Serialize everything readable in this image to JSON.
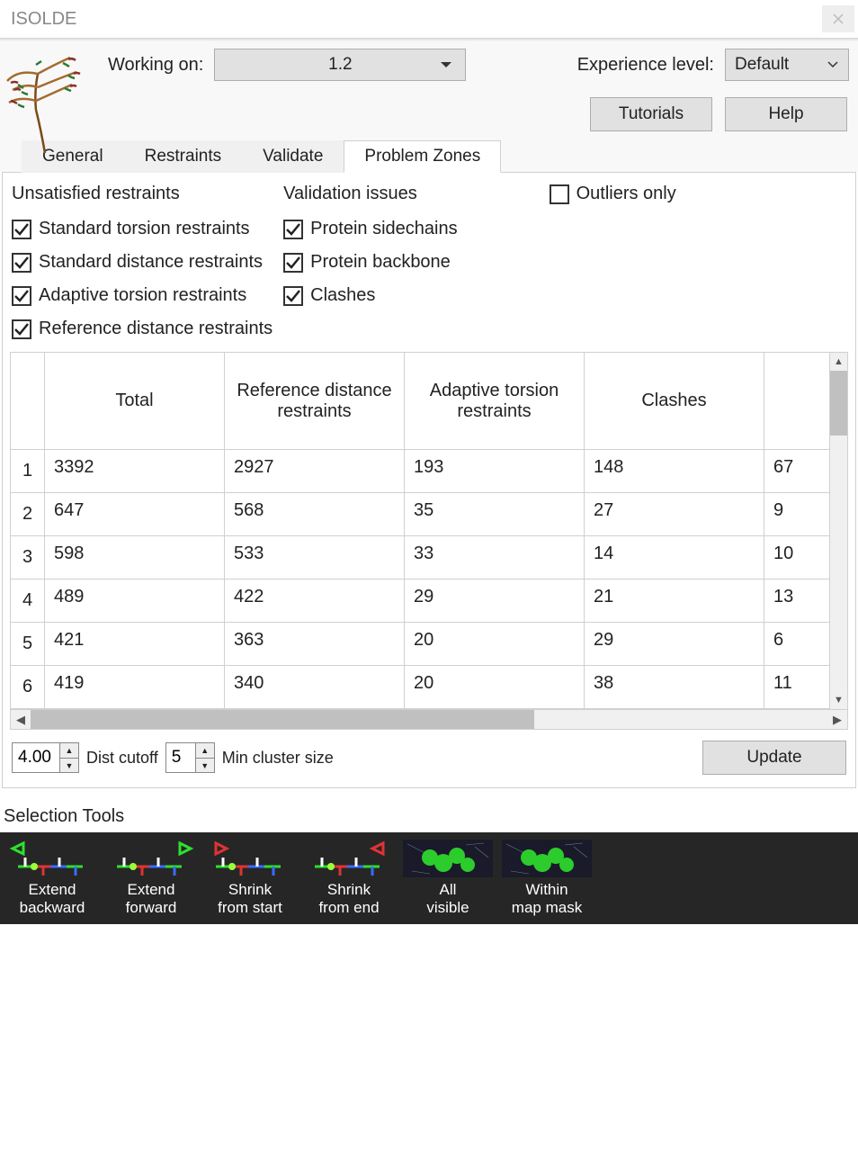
{
  "window": {
    "title": "ISOLDE"
  },
  "header": {
    "working_on_label": "Working on:",
    "working_on_value": "1.2",
    "experience_label": "Experience level:",
    "experience_value": "Default",
    "tutorials_btn": "Tutorials",
    "help_btn": "Help"
  },
  "tabs": {
    "items": [
      {
        "label": "General"
      },
      {
        "label": "Restraints"
      },
      {
        "label": "Validate"
      },
      {
        "label": "Problem Zones"
      }
    ],
    "active_index": 3
  },
  "checks": {
    "col1_head": "Unsatisfied restraints",
    "col1": [
      {
        "label": "Standard torsion restraints",
        "checked": true
      },
      {
        "label": "Standard distance restraints",
        "checked": true
      },
      {
        "label": "Adaptive torsion restraints",
        "checked": true
      },
      {
        "label": "Reference distance restraints",
        "checked": true
      }
    ],
    "col2_head": "Validation issues",
    "col2": [
      {
        "label": "Protein sidechains",
        "checked": true
      },
      {
        "label": "Protein backbone",
        "checked": true
      },
      {
        "label": "Clashes",
        "checked": true
      }
    ],
    "outliers_label": "Outliers only",
    "outliers_checked": false
  },
  "table": {
    "columns": [
      "Total",
      "Reference distance restraints",
      "Adaptive torsion restraints",
      "Clashes",
      ""
    ],
    "rows": [
      [
        "3392",
        "2927",
        "193",
        "148",
        "67"
      ],
      [
        "647",
        "568",
        "35",
        "27",
        "9"
      ],
      [
        "598",
        "533",
        "33",
        "14",
        "10"
      ],
      [
        "489",
        "422",
        "29",
        "21",
        "13"
      ],
      [
        "421",
        "363",
        "20",
        "29",
        "6"
      ],
      [
        "419",
        "340",
        "20",
        "38",
        "11"
      ]
    ]
  },
  "controls": {
    "dist_value": "4.00",
    "dist_label": "Dist cutoff",
    "min_value": "5",
    "min_label": "Min cluster size",
    "update_btn": "Update"
  },
  "selection": {
    "heading": "Selection Tools",
    "tools": [
      {
        "l1": "Extend",
        "l2": "backward",
        "icon": "extend-backward"
      },
      {
        "l1": "Extend",
        "l2": "forward",
        "icon": "extend-forward"
      },
      {
        "l1": "Shrink",
        "l2": "from start",
        "icon": "shrink-start"
      },
      {
        "l1": "Shrink",
        "l2": "from end",
        "icon": "shrink-end"
      },
      {
        "l1": "All",
        "l2": "visible",
        "icon": "all-visible"
      },
      {
        "l1": "Within",
        "l2": "map mask",
        "icon": "map-mask"
      }
    ]
  },
  "colors": {
    "accent_green": "#2de02d",
    "accent_red": "#e03333",
    "bg_dark": "#262626"
  }
}
